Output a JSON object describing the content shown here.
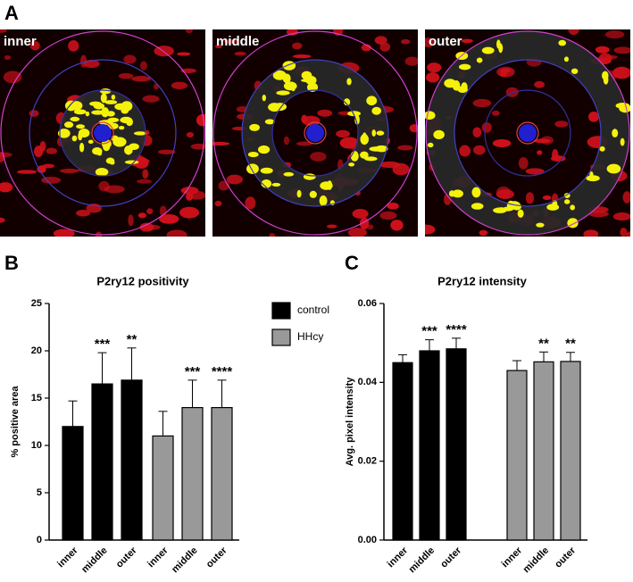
{
  "figure": {
    "panel_labels": [
      "A",
      "B",
      "C"
    ],
    "image_labels": [
      "inner",
      "middle",
      "outer"
    ]
  },
  "chart_data": [
    {
      "type": "bar",
      "title": "P2ry12 positivity",
      "y_label": "% positive area",
      "categories": [
        "inner",
        "middle",
        "outer"
      ],
      "ylim": [
        0,
        25
      ],
      "yticks": [
        0,
        5,
        10,
        15,
        20,
        25
      ],
      "legend": "right",
      "series": [
        {
          "name": "control",
          "color": "#000000",
          "values": [
            12.0,
            16.5,
            16.9
          ],
          "errors": [
            2.7,
            3.3,
            3.4
          ],
          "significance": [
            null,
            "***",
            "**"
          ]
        },
        {
          "name": "HHcy",
          "color": "#999999",
          "values": [
            11.0,
            14.0,
            14.0
          ],
          "errors": [
            2.6,
            2.9,
            2.9
          ],
          "significance": [
            null,
            "***",
            "****"
          ]
        }
      ]
    },
    {
      "type": "bar",
      "title": "P2ry12 intensity",
      "y_label": "Avg. pixel intensity",
      "categories": [
        "inner",
        "middle",
        "outer"
      ],
      "ylim": [
        0,
        0.06
      ],
      "yticks": [
        {
          "value": 0,
          "label": "0.00"
        },
        {
          "value": 0.02,
          "label": "0.02"
        },
        {
          "value": 0.04,
          "label": "0.04"
        },
        {
          "value": 0.06,
          "label": "0.06"
        }
      ],
      "series": [
        {
          "name": "control",
          "color": "#000000",
          "values": [
            0.045,
            0.048,
            0.0485
          ],
          "errors": [
            0.002,
            0.0028,
            0.0027
          ],
          "significance": [
            null,
            "***",
            "****"
          ]
        },
        {
          "name": "HHcy",
          "color": "#999999",
          "values": [
            0.043,
            0.0452,
            0.0453
          ],
          "errors": [
            0.0025,
            0.0025,
            0.0023
          ],
          "significance": [
            null,
            "**",
            "**"
          ]
        }
      ]
    }
  ]
}
